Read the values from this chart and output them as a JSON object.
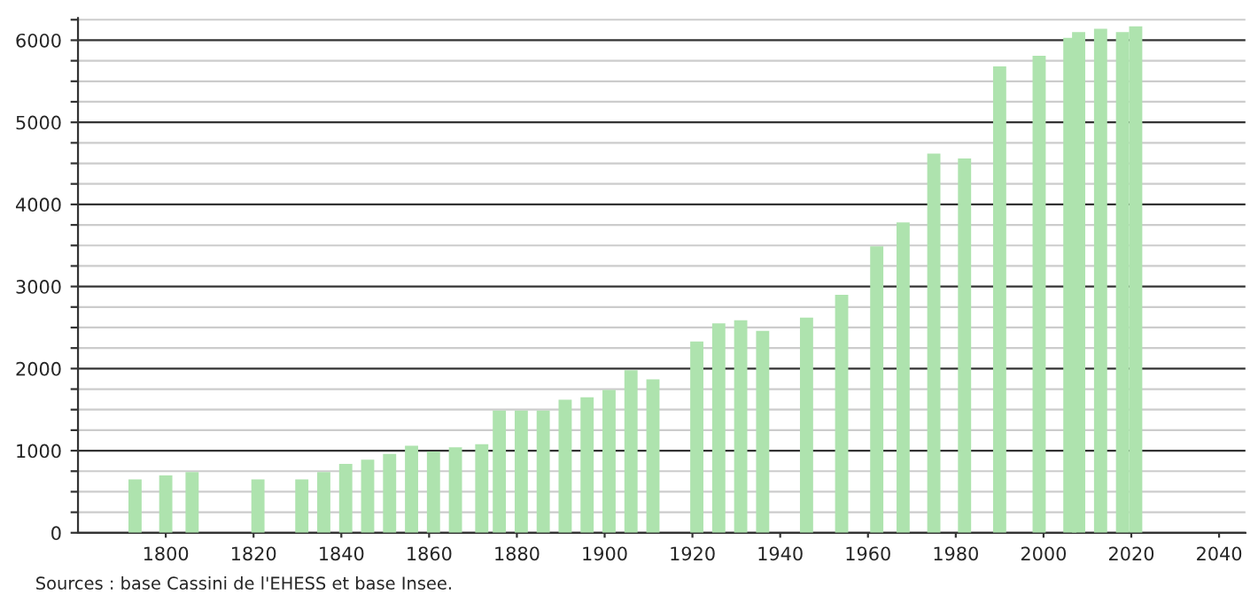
{
  "chart_data": {
    "type": "bar",
    "x": [
      1793,
      1800,
      1806,
      1821,
      1831,
      1836,
      1841,
      1846,
      1851,
      1856,
      1861,
      1866,
      1872,
      1876,
      1881,
      1886,
      1891,
      1896,
      1901,
      1906,
      1911,
      1921,
      1926,
      1931,
      1936,
      1946,
      1954,
      1962,
      1968,
      1975,
      1982,
      1990,
      1999,
      2006,
      2008,
      2013,
      2018,
      2021
    ],
    "values": [
      650,
      700,
      740,
      650,
      650,
      740,
      840,
      890,
      960,
      1060,
      990,
      1040,
      1080,
      1490,
      1490,
      1490,
      1620,
      1650,
      1740,
      1980,
      1870,
      2330,
      2550,
      2590,
      2460,
      2620,
      2900,
      3490,
      3780,
      4620,
      4560,
      5680,
      5810,
      6030,
      6100,
      6140,
      6100,
      6170
    ],
    "color": "#aee3ae",
    "xlim": [
      1780,
      2046
    ],
    "xticks": [
      1800,
      1820,
      1840,
      1860,
      1880,
      1900,
      1920,
      1940,
      1960,
      1980,
      2000,
      2020,
      2040
    ],
    "ylim": [
      0,
      6270
    ],
    "yticks": [
      0,
      {
        "value": 250,
        "label": null
      },
      {
        "value": 500,
        "label": null
      },
      {
        "value": 750,
        "label": null
      },
      1000,
      {
        "value": 1250,
        "label": null
      },
      {
        "value": 1500,
        "label": null
      },
      {
        "value": 1750,
        "label": null
      },
      2000,
      {
        "value": 2250,
        "label": null
      },
      {
        "value": 2500,
        "label": null
      },
      {
        "value": 2750,
        "label": null
      },
      3000,
      {
        "value": 3250,
        "label": null
      },
      {
        "value": 3500,
        "label": null
      },
      {
        "value": 3750,
        "label": null
      },
      4000,
      {
        "value": 4250,
        "label": null
      },
      {
        "value": 4500,
        "label": null
      },
      {
        "value": 4750,
        "label": null
      },
      5000,
      {
        "value": 5250,
        "label": null
      },
      {
        "value": 5500,
        "label": null
      },
      {
        "value": 5750,
        "label": null
      },
      6000,
      {
        "value": 6250,
        "label": null
      }
    ],
    "grid": "y",
    "annotations": [
      "Sources : base Cassini de l'EHESS et base Insee."
    ]
  }
}
